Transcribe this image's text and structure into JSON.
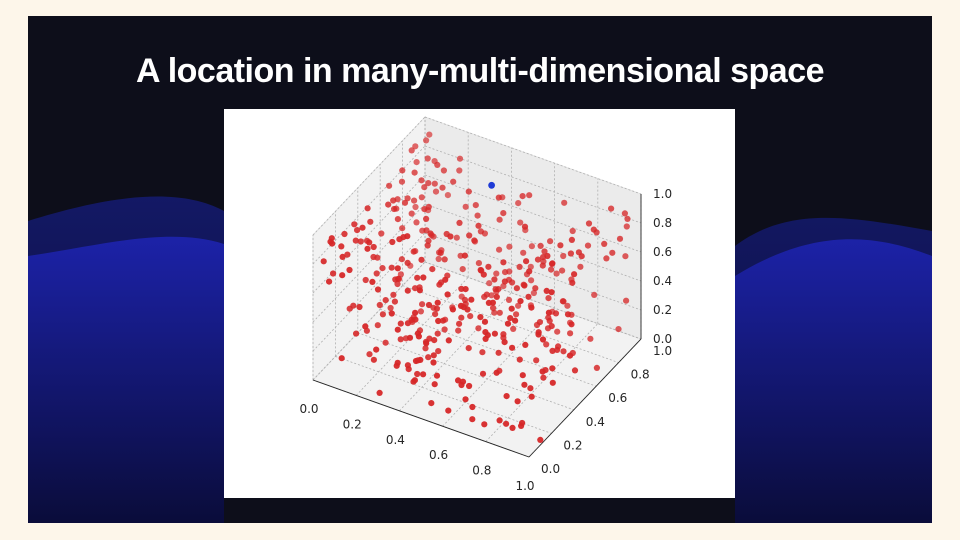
{
  "slide": {
    "title": "A location in many-multi-dimensional space"
  },
  "chart_data": {
    "type": "scatter",
    "projection": "3d",
    "title": "",
    "xlabel": "",
    "ylabel": "",
    "zlabel": "",
    "xlim": [
      0,
      1
    ],
    "ylim": [
      0,
      1
    ],
    "zlim": [
      0,
      1
    ],
    "x_ticks": [
      "0.0",
      "0.2",
      "0.4",
      "0.6",
      "0.8",
      "1.0"
    ],
    "y_ticks": [
      "0.0",
      "0.2",
      "0.4",
      "0.6",
      "0.8",
      "1.0"
    ],
    "z_ticks": [
      "0.0",
      "0.2",
      "0.4",
      "0.6",
      "0.8",
      "1.0"
    ],
    "grid": true,
    "series": [
      {
        "color": "#d62728",
        "count": 400,
        "distribution": "uniform random in unit cube",
        "points": []
      },
      {
        "color": "#1f3bd6",
        "points": [
          [
            0.35,
            0.92,
            0.78
          ]
        ]
      }
    ]
  },
  "colors": {
    "slide_background": "#0d0e1a",
    "wave_blue": "#1a1f9a",
    "point_red": "#d62728",
    "highlight_blue": "#1f3bd6"
  }
}
